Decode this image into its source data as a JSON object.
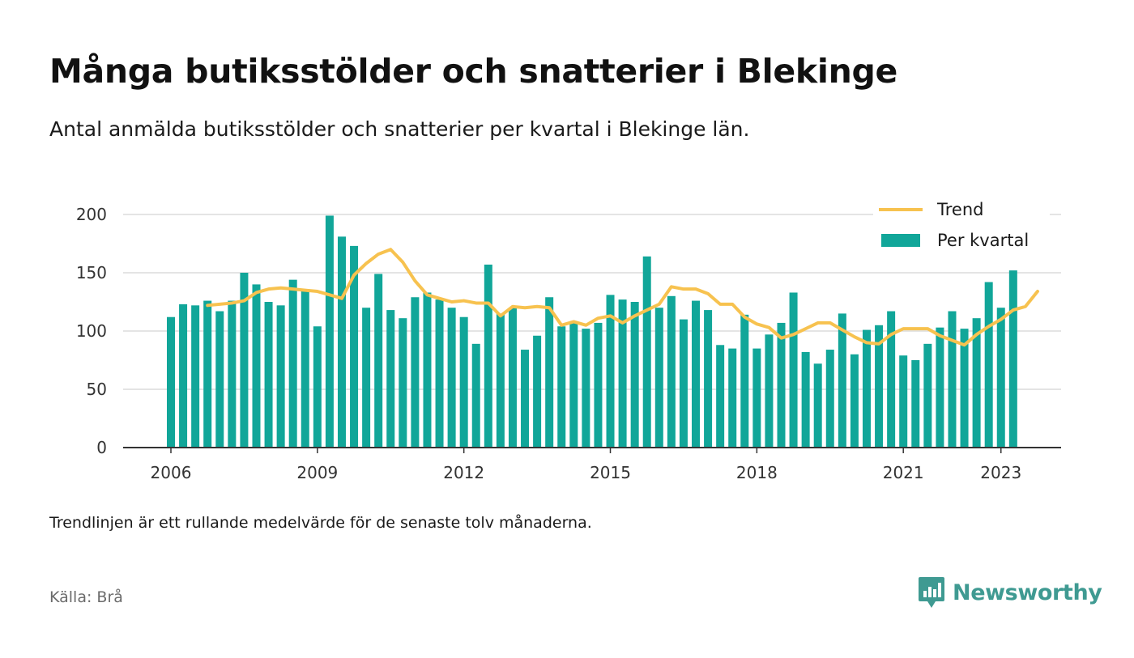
{
  "title": "Många butiksstölder och snatterier i Blekinge",
  "subtitle": "Antal anmälda butiksstölder och snatterier per kvartal i Blekinge län.",
  "note": "Trendlinjen är ett rullande medelvärde för de senaste tolv månaderna.",
  "source": "Källa: Brå",
  "brand": {
    "name": "Newsworthy",
    "icon": "newsworthy-logo-icon",
    "color": "#3f9a92"
  },
  "colors": {
    "bar": "#11a699",
    "trend": "#f7c24f",
    "grid": "#dcdcdc",
    "axis": "#333333"
  },
  "chart_data": {
    "type": "bar",
    "x_start": "2006 Q1",
    "xlabel": "",
    "ylabel": "",
    "ylim": [
      0,
      200
    ],
    "y_ticks": [
      0,
      50,
      100,
      150,
      200
    ],
    "x_ticks": [
      {
        "label": "2006",
        "year": 2006
      },
      {
        "label": "2009",
        "year": 2009
      },
      {
        "label": "2012",
        "year": 2012
      },
      {
        "label": "2015",
        "year": 2015
      },
      {
        "label": "2018",
        "year": 2018
      },
      {
        "label": "2021",
        "year": 2021
      },
      {
        "label": "2023",
        "year": 2023
      }
    ],
    "grid": true,
    "legend_position": "top-right",
    "series": [
      {
        "name": "Per kvartal",
        "kind": "bar",
        "values": [
          112,
          123,
          122,
          126,
          117,
          126,
          150,
          140,
          125,
          122,
          144,
          136,
          104,
          199,
          181,
          173,
          120,
          149,
          118,
          111,
          129,
          133,
          127,
          120,
          112,
          89,
          157,
          115,
          120,
          84,
          96,
          129,
          104,
          108,
          102,
          107,
          131,
          127,
          125,
          164,
          120,
          130,
          110,
          126,
          118,
          88,
          85,
          114,
          85,
          97,
          107,
          133,
          82,
          72,
          84,
          115,
          80,
          101,
          105,
          117,
          79,
          75,
          89,
          103,
          117,
          102,
          111,
          142,
          120,
          152
        ]
      },
      {
        "name": "Trend",
        "kind": "line",
        "start_index": 3,
        "values": [
          122,
          123,
          124,
          126,
          133,
          136,
          137,
          136,
          135,
          134,
          131,
          128,
          148,
          158,
          166,
          170,
          159,
          143,
          131,
          128,
          125,
          126,
          124,
          124,
          113,
          121,
          120,
          121,
          120,
          105,
          108,
          105,
          111,
          113,
          107,
          113,
          118,
          123,
          138,
          136,
          136,
          132,
          123,
          123,
          112,
          106,
          103,
          94,
          97,
          102,
          107,
          107,
          101,
          95,
          90,
          89,
          97,
          102,
          102,
          102,
          96,
          92,
          88,
          97,
          104,
          110,
          118,
          121,
          134
        ]
      }
    ]
  }
}
